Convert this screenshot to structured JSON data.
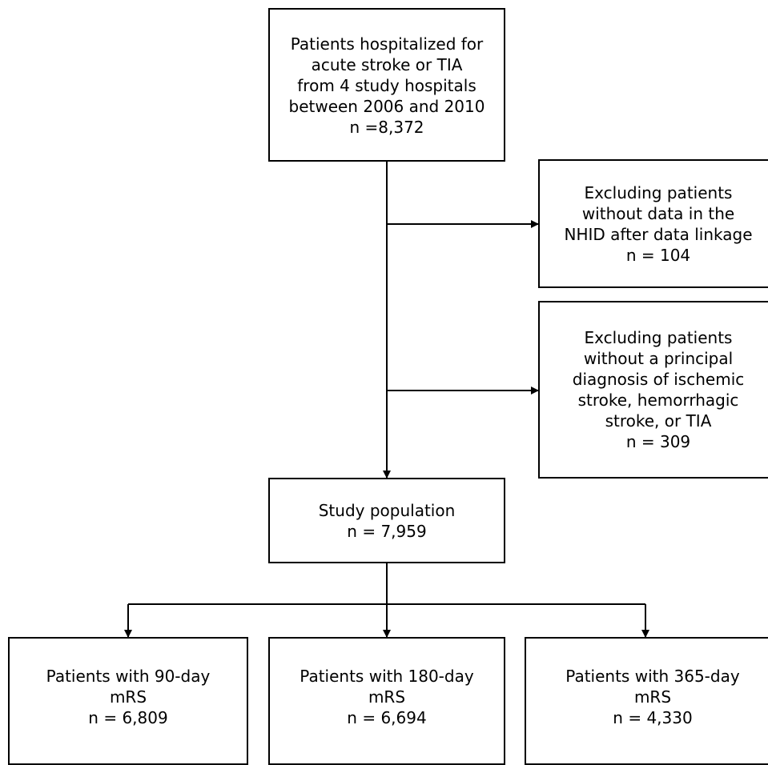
{
  "flowchart": {
    "source": {
      "lines": [
        "Patients hospitalized for",
        "acute stroke or TIA",
        "from 4 study hospitals",
        "between 2006 and 2010",
        "n =8,372"
      ]
    },
    "exclusion_nhid": {
      "lines": [
        "Excluding patients",
        "without data in the",
        "NHID after data linkage",
        "n = 104"
      ]
    },
    "exclusion_diagnosis": {
      "lines": [
        "Excluding patients",
        "without a principal",
        "diagnosis of ischemic",
        "stroke, hemorrhagic",
        "stroke, or TIA",
        "n = 309"
      ]
    },
    "study_population": {
      "lines": [
        "Study population",
        "n = 7,959"
      ]
    },
    "outcome_90": {
      "lines": [
        "Patients with 90-day",
        "mRS",
        "n = 6,809"
      ]
    },
    "outcome_180": {
      "lines": [
        "Patients with 180-day",
        "mRS",
        "n = 6,694"
      ]
    },
    "outcome_365": {
      "lines": [
        "Patients with 365-day",
        "mRS",
        "n = 4,330"
      ]
    }
  },
  "colors": {
    "line": "#000000",
    "box_border": "#000000",
    "background": "#ffffff"
  }
}
